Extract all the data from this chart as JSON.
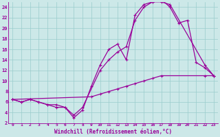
{
  "xlabel": "Windchill (Refroidissement éolien,°C)",
  "bg_color": "#cce8e8",
  "grid_color": "#99cccc",
  "line_color": "#990099",
  "xlim": [
    -0.5,
    23.5
  ],
  "ylim": [
    2,
    25
  ],
  "xticks": [
    0,
    1,
    2,
    3,
    4,
    5,
    6,
    7,
    8,
    9,
    10,
    11,
    12,
    13,
    14,
    15,
    16,
    17,
    18,
    19,
    20,
    21,
    22,
    23
  ],
  "yticks": [
    2,
    4,
    6,
    8,
    10,
    12,
    14,
    16,
    18,
    20,
    22,
    24
  ],
  "curve1_x": [
    0,
    1,
    2,
    3,
    4,
    5,
    6,
    7,
    8,
    9,
    10,
    11,
    12,
    13,
    14,
    15,
    16,
    17,
    18,
    22,
    23
  ],
  "curve1_y": [
    6.5,
    6.0,
    6.5,
    6.0,
    5.5,
    5.0,
    5.0,
    3.0,
    4.5,
    9.0,
    13.0,
    16.0,
    17.0,
    14.0,
    22.5,
    24.5,
    25.0,
    25.0,
    24.5,
    13.0,
    11.0
  ],
  "curve2_x": [
    0,
    1,
    2,
    3,
    4,
    5,
    6,
    7,
    8,
    10,
    11,
    12,
    13,
    14,
    15,
    16,
    17,
    18,
    19,
    20,
    21,
    22,
    23
  ],
  "curve2_y": [
    6.5,
    6.0,
    6.5,
    6.0,
    5.5,
    5.5,
    5.0,
    3.5,
    5.0,
    12.0,
    14.0,
    15.5,
    16.5,
    21.5,
    24.0,
    25.0,
    25.5,
    24.0,
    21.0,
    21.5,
    13.5,
    12.5,
    11.0
  ],
  "curve3_x": [
    0,
    9,
    10,
    11,
    12,
    13,
    14,
    15,
    16,
    17,
    22,
    23
  ],
  "curve3_y": [
    6.5,
    7.0,
    7.5,
    8.0,
    8.5,
    9.0,
    9.5,
    10.0,
    10.5,
    11.0,
    11.0,
    11.0
  ]
}
